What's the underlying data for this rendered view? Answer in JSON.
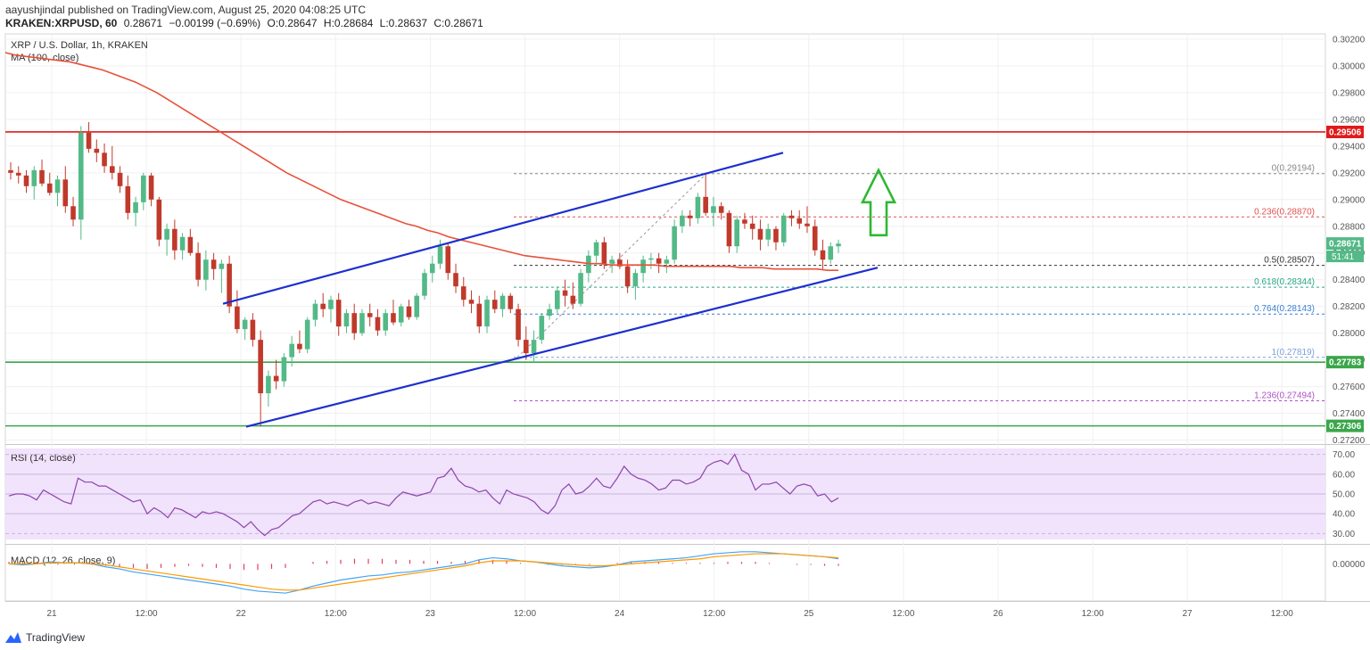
{
  "header": {
    "publisher": "aayushjindal published on TradingView.com, August 25, 2020 04:08:25 UTC",
    "symbol": "KRAKEN:XRPUSD, 60",
    "last": "0.28671",
    "change": "−0.00199 (−0.69%)",
    "open": "O:0.28647",
    "high": "H:0.28684",
    "low": "L:0.28637",
    "close": "C:0.28671"
  },
  "legend": {
    "pair": "XRP / U.S. Dollar, 1h, KRAKEN",
    "ma": "MA (100, close)",
    "rsi": "RSI (14, close)",
    "macd": "MACD (12, 26, close, 9)"
  },
  "footer": {
    "brand": "TradingView"
  },
  "colors": {
    "up": "#53b987",
    "down": "#c0392b",
    "ma": "#e8503a",
    "resistance": "#e01a1a",
    "support": "#3aa64a",
    "channel": "#1c2fcf",
    "arrow": "#2fb833",
    "rsi_bg": "#f0e3fb",
    "macd_line": "#42a5f5",
    "signal_line": "#ff9800"
  },
  "chart_data": {
    "type": "candlestick",
    "interval": "1h",
    "price_axis_ticks": [
      "0.30200",
      "0.30000",
      "0.29800",
      "0.29600",
      "0.29400",
      "0.29200",
      "0.29000",
      "0.28800",
      "0.28600",
      "0.28400",
      "0.28200",
      "0.28000",
      "0.27800",
      "0.27600",
      "0.27400",
      "0.27200"
    ],
    "ylim": [
      0.2717,
      0.3024
    ],
    "time_axis_labels": [
      "21",
      "12:00",
      "22",
      "12:00",
      "23",
      "12:00",
      "24",
      "12:00",
      "25",
      "12:00",
      "26",
      "12:00",
      "27",
      "12:00"
    ],
    "price_labels": {
      "resistance": "0.29506",
      "current": "0.28671",
      "countdown": "51:41",
      "support1": "0.27783",
      "support2": "0.27306"
    },
    "horizontal_levels": [
      {
        "name": "resistance",
        "value": 0.29506
      },
      {
        "name": "support1",
        "value": 0.27783
      },
      {
        "name": "support2",
        "value": 0.27306
      }
    ],
    "fibonacci": [
      {
        "level": "0",
        "value": "0.29194",
        "color": "#888888"
      },
      {
        "level": "0.236",
        "value": "0.28870",
        "color": "#e05050"
      },
      {
        "level": "0.5",
        "value": "0.28507",
        "color": "#333333"
      },
      {
        "level": "0.618",
        "value": "0.28344",
        "color": "#28a789"
      },
      {
        "level": "0.764",
        "value": "0.28143",
        "color": "#3a7fd5"
      },
      {
        "level": "1",
        "value": "0.27819",
        "color": "#7aa0d8"
      },
      {
        "level": "1.236",
        "value": "0.27494",
        "color": "#b050c8"
      }
    ],
    "fib_labels": [
      "0(0.29194)",
      "0.236(0.28870)",
      "0.5(0.28507)",
      "0.618(0.28344)",
      "0.764(0.28143)",
      "1(0.27819)",
      "1.236(0.27494)"
    ],
    "channel": {
      "upper": [
        [
          0,
          0.2822
        ],
        [
          0,
          0.2935
        ]
      ],
      "lower": [
        [
          0,
          0.273
        ],
        [
          0,
          0.2849
        ]
      ]
    },
    "candles_ohlc": [
      [
        0.2922,
        0.2928,
        0.2915,
        0.292
      ],
      [
        0.292,
        0.2925,
        0.2912,
        0.2918
      ],
      [
        0.2918,
        0.2922,
        0.2905,
        0.291
      ],
      [
        0.291,
        0.2925,
        0.29,
        0.2922
      ],
      [
        0.2922,
        0.293,
        0.291,
        0.2912
      ],
      [
        0.2912,
        0.292,
        0.2903,
        0.2905
      ],
      [
        0.2905,
        0.2918,
        0.2895,
        0.2915
      ],
      [
        0.2915,
        0.2925,
        0.289,
        0.2895
      ],
      [
        0.2895,
        0.2902,
        0.288,
        0.2885
      ],
      [
        0.2885,
        0.2955,
        0.287,
        0.295
      ],
      [
        0.295,
        0.2958,
        0.2935,
        0.2938
      ],
      [
        0.2938,
        0.2945,
        0.2928,
        0.2935
      ],
      [
        0.2935,
        0.2942,
        0.292,
        0.2925
      ],
      [
        0.2925,
        0.294,
        0.2915,
        0.292
      ],
      [
        0.292,
        0.2925,
        0.2905,
        0.291
      ],
      [
        0.291,
        0.2918,
        0.2885,
        0.289
      ],
      [
        0.289,
        0.2902,
        0.288,
        0.2898
      ],
      [
        0.2898,
        0.292,
        0.2892,
        0.2918
      ],
      [
        0.2918,
        0.292,
        0.2895,
        0.29
      ],
      [
        0.29,
        0.2902,
        0.2865,
        0.287
      ],
      [
        0.287,
        0.2882,
        0.2858,
        0.2878
      ],
      [
        0.2878,
        0.2885,
        0.2855,
        0.2862
      ],
      [
        0.2862,
        0.2875,
        0.2855,
        0.2872
      ],
      [
        0.2872,
        0.2878,
        0.2858,
        0.286
      ],
      [
        0.286,
        0.2868,
        0.2835,
        0.284
      ],
      [
        0.284,
        0.2862,
        0.2832,
        0.2855
      ],
      [
        0.2855,
        0.286,
        0.284,
        0.2848
      ],
      [
        0.2848,
        0.2855,
        0.283,
        0.2852
      ],
      [
        0.2852,
        0.2858,
        0.2815,
        0.282
      ],
      [
        0.282,
        0.2832,
        0.28,
        0.2803
      ],
      [
        0.2803,
        0.2812,
        0.2795,
        0.281
      ],
      [
        0.281,
        0.2815,
        0.279,
        0.2795
      ],
      [
        0.2795,
        0.2802,
        0.273,
        0.2755
      ],
      [
        0.2755,
        0.2772,
        0.2745,
        0.2768
      ],
      [
        0.2768,
        0.278,
        0.2758,
        0.2764
      ],
      [
        0.2764,
        0.2785,
        0.276,
        0.2782
      ],
      [
        0.2782,
        0.2798,
        0.2775,
        0.2792
      ],
      [
        0.2792,
        0.2802,
        0.2785,
        0.2788
      ],
      [
        0.2788,
        0.2812,
        0.2785,
        0.281
      ],
      [
        0.281,
        0.2825,
        0.2805,
        0.2822
      ],
      [
        0.2822,
        0.283,
        0.2812,
        0.2818
      ],
      [
        0.2818,
        0.2828,
        0.2808,
        0.2825
      ],
      [
        0.2825,
        0.283,
        0.2798,
        0.2805
      ],
      [
        0.2805,
        0.2818,
        0.28,
        0.2815
      ],
      [
        0.2815,
        0.2822,
        0.2795,
        0.28
      ],
      [
        0.28,
        0.2818,
        0.2798,
        0.2815
      ],
      [
        0.2815,
        0.2822,
        0.2805,
        0.2812
      ],
      [
        0.2812,
        0.2818,
        0.2798,
        0.2802
      ],
      [
        0.2802,
        0.2818,
        0.2798,
        0.2815
      ],
      [
        0.2815,
        0.2825,
        0.2806,
        0.2808
      ],
      [
        0.2808,
        0.2822,
        0.2805,
        0.282
      ],
      [
        0.282,
        0.2825,
        0.281,
        0.2812
      ],
      [
        0.2812,
        0.283,
        0.281,
        0.2828
      ],
      [
        0.2828,
        0.2848,
        0.2825,
        0.2845
      ],
      [
        0.2845,
        0.2858,
        0.2838,
        0.2852
      ],
      [
        0.2852,
        0.287,
        0.2848,
        0.2865
      ],
      [
        0.2865,
        0.2868,
        0.284,
        0.2845
      ],
      [
        0.2845,
        0.2852,
        0.283,
        0.2835
      ],
      [
        0.2835,
        0.2842,
        0.282,
        0.2825
      ],
      [
        0.2825,
        0.2832,
        0.2815,
        0.2822
      ],
      [
        0.2822,
        0.2828,
        0.28,
        0.2805
      ],
      [
        0.2805,
        0.2828,
        0.28,
        0.2825
      ],
      [
        0.2825,
        0.2832,
        0.2815,
        0.2818
      ],
      [
        0.2818,
        0.283,
        0.2812,
        0.2828
      ],
      [
        0.2828,
        0.283,
        0.2815,
        0.2818
      ],
      [
        0.2818,
        0.2822,
        0.279,
        0.2795
      ],
      [
        0.2795,
        0.2805,
        0.278,
        0.2785
      ],
      [
        0.2785,
        0.2802,
        0.2778,
        0.2795
      ],
      [
        0.2795,
        0.2815,
        0.2792,
        0.2813
      ],
      [
        0.2813,
        0.2822,
        0.281,
        0.2818
      ],
      [
        0.2818,
        0.2835,
        0.2815,
        0.2832
      ],
      [
        0.2832,
        0.284,
        0.282,
        0.2828
      ],
      [
        0.2828,
        0.2838,
        0.2818,
        0.2822
      ],
      [
        0.2822,
        0.2848,
        0.282,
        0.2845
      ],
      [
        0.2845,
        0.2862,
        0.2838,
        0.2858
      ],
      [
        0.2858,
        0.287,
        0.2852,
        0.2868
      ],
      [
        0.2868,
        0.2872,
        0.2848,
        0.2852
      ],
      [
        0.2852,
        0.2858,
        0.2845,
        0.2855
      ],
      [
        0.2855,
        0.286,
        0.2848,
        0.285
      ],
      [
        0.285,
        0.2855,
        0.283,
        0.2835
      ],
      [
        0.2835,
        0.2848,
        0.2825,
        0.2845
      ],
      [
        0.2845,
        0.2858,
        0.2838,
        0.2855
      ],
      [
        0.2855,
        0.286,
        0.2848,
        0.2856
      ],
      [
        0.2856,
        0.286,
        0.2845,
        0.2852
      ],
      [
        0.2852,
        0.2858,
        0.2845,
        0.2855
      ],
      [
        0.2855,
        0.2885,
        0.2852,
        0.288
      ],
      [
        0.288,
        0.2892,
        0.2875,
        0.2888
      ],
      [
        0.2888,
        0.2892,
        0.288,
        0.2886
      ],
      [
        0.2886,
        0.2905,
        0.2882,
        0.2902
      ],
      [
        0.2902,
        0.2919,
        0.2888,
        0.289
      ],
      [
        0.289,
        0.2902,
        0.288,
        0.2895
      ],
      [
        0.2895,
        0.2898,
        0.2885,
        0.289
      ],
      [
        0.289,
        0.2892,
        0.286,
        0.2865
      ],
      [
        0.2865,
        0.2888,
        0.286,
        0.2885
      ],
      [
        0.2885,
        0.289,
        0.2878,
        0.2882
      ],
      [
        0.2882,
        0.2888,
        0.287,
        0.2878
      ],
      [
        0.2878,
        0.2885,
        0.2862,
        0.287
      ],
      [
        0.287,
        0.2882,
        0.2865,
        0.2878
      ],
      [
        0.2878,
        0.288,
        0.2862,
        0.2868
      ],
      [
        0.2868,
        0.289,
        0.2865,
        0.2888
      ],
      [
        0.2888,
        0.2892,
        0.288,
        0.2886
      ],
      [
        0.2886,
        0.2892,
        0.2878,
        0.2882
      ],
      [
        0.2882,
        0.2895,
        0.2875,
        0.288
      ],
      [
        0.288,
        0.2885,
        0.2858,
        0.2862
      ],
      [
        0.2862,
        0.287,
        0.2848,
        0.2855
      ],
      [
        0.2855,
        0.2868,
        0.2852,
        0.2865
      ],
      [
        0.2865,
        0.287,
        0.286,
        0.2867
      ]
    ],
    "ma100": [
      0.301,
      0.3008,
      0.3007,
      0.3006,
      0.3005,
      0.3004,
      0.3003,
      0.3001,
      0.2999,
      0.2997,
      0.2994,
      0.2991,
      0.2988,
      0.2984,
      0.298,
      0.2975,
      0.297,
      0.2965,
      0.296,
      0.2955,
      0.295,
      0.2945,
      0.294,
      0.2935,
      0.293,
      0.2925,
      0.292,
      0.2916,
      0.2912,
      0.2908,
      0.2904,
      0.29,
      0.2897,
      0.2894,
      0.2891,
      0.2888,
      0.2885,
      0.2882,
      0.288,
      0.2877,
      0.2875,
      0.2872,
      0.287,
      0.2868,
      0.2866,
      0.2864,
      0.2862,
      0.286,
      0.2858,
      0.2857,
      0.2856,
      0.2855,
      0.2854,
      0.2853,
      0.2852,
      0.2852,
      0.2851,
      0.2851,
      0.2851,
      0.2851,
      0.2851,
      0.285,
      0.285,
      0.285,
      0.285,
      0.285,
      0.285,
      0.285,
      0.2849,
      0.2849,
      0.2849,
      0.2848,
      0.2848,
      0.2848,
      0.2848,
      0.2848,
      0.2847,
      0.2847
    ],
    "rsi": {
      "ticks": [
        "70.00",
        "60.00",
        "50.00",
        "40.00",
        "30.00"
      ],
      "ylim": [
        27,
        73
      ],
      "values": [
        49,
        50,
        50,
        49,
        47,
        52,
        50,
        48,
        46,
        45,
        58,
        56,
        56,
        54,
        54,
        52,
        50,
        48,
        46,
        47,
        40,
        43,
        41,
        38,
        43,
        42,
        40,
        38,
        41,
        40,
        41,
        40,
        38,
        36,
        33,
        36,
        32,
        29,
        32,
        33,
        36,
        39,
        40,
        43,
        46,
        47,
        45,
        46,
        45,
        44,
        46,
        47,
        45,
        46,
        45,
        44,
        48,
        51,
        50,
        49,
        50,
        51,
        58,
        59,
        63,
        57,
        54,
        53,
        51,
        52,
        48,
        45,
        52,
        50,
        49,
        48,
        46,
        42,
        40,
        44,
        52,
        55,
        50,
        51,
        54,
        58,
        54,
        53,
        58,
        64,
        60,
        58,
        57,
        55,
        52,
        53,
        57,
        57,
        55,
        56,
        58,
        64,
        66,
        67,
        65,
        70,
        62,
        60,
        52,
        55,
        55,
        56,
        53,
        50,
        54,
        55,
        54,
        49,
        50,
        46,
        48
      ]
    },
    "macd": {
      "ticks": [
        "0.00000"
      ],
      "ylim": [
        -0.0035,
        0.0018
      ],
      "macd_line": [
        0.0,
        -0.0001,
        0.0,
        0.0002,
        0.0001,
        0.0001,
        0.0,
        -0.0003,
        -0.0005,
        -0.0008,
        -0.001,
        -0.0012,
        -0.0014,
        -0.0016,
        -0.0018,
        -0.002,
        -0.0022,
        -0.0025,
        -0.0027,
        -0.0028,
        -0.0029,
        -0.0026,
        -0.0022,
        -0.0019,
        -0.0016,
        -0.0014,
        -0.0012,
        -0.0011,
        -0.0009,
        -0.0008,
        -0.0006,
        -0.0004,
        -0.0002,
        0.0,
        0.0004,
        0.0006,
        0.0005,
        0.0003,
        0.0002,
        0.0,
        -0.0002,
        -0.0003,
        -0.0004,
        -0.0003,
        -0.0001,
        0.0002,
        0.0003,
        0.0004,
        0.0005,
        0.0006,
        0.0008,
        0.001,
        0.0011,
        0.0012,
        0.0012,
        0.0011,
        0.001,
        0.0009,
        0.0008,
        0.0007,
        0.0005
      ],
      "signal_line": [
        0.0,
        0.0,
        0.0,
        0.0001,
        0.0001,
        0.0001,
        0.0,
        -0.0001,
        -0.0003,
        -0.0005,
        -0.0007,
        -0.0009,
        -0.0011,
        -0.0013,
        -0.0015,
        -0.0017,
        -0.0019,
        -0.0021,
        -0.0023,
        -0.0025,
        -0.0026,
        -0.0026,
        -0.0024,
        -0.0022,
        -0.002,
        -0.0018,
        -0.0016,
        -0.0014,
        -0.0012,
        -0.001,
        -0.0008,
        -0.0006,
        -0.0004,
        -0.0002,
        0.0001,
        0.0003,
        0.0003,
        0.0003,
        0.0002,
        0.0001,
        0.0,
        -0.0001,
        -0.0002,
        -0.0002,
        -0.0001,
        0.0,
        0.0001,
        0.0002,
        0.0003,
        0.0004,
        0.0005,
        0.0007,
        0.0008,
        0.0009,
        0.001,
        0.001,
        0.001,
        0.0009,
        0.0008,
        0.0007,
        0.0006
      ],
      "histogram": [
        0.0002,
        0.0002,
        0.0002,
        0.0001,
        0.0001,
        0.0,
        -0.0001,
        -0.0002,
        -0.0003,
        -0.0004,
        -0.0005,
        -0.0004,
        -0.0003,
        -0.0002,
        -0.0003,
        -0.0004,
        -0.0005,
        -0.0006,
        -0.0006,
        -0.0005,
        -0.0004,
        0.0,
        0.0002,
        0.0003,
        0.0004,
        0.0005,
        0.0005,
        0.0005,
        0.0004,
        0.0004,
        0.0003,
        0.0003,
        0.0002,
        0.0003,
        0.0004,
        0.0004,
        0.0003,
        0.0001,
        0.0,
        -0.0001,
        -0.0001,
        -0.0001,
        -0.0001,
        0.0,
        0.0001,
        0.0002,
        0.0002,
        0.0002,
        0.0001,
        0.0001,
        0.0001,
        0.0001,
        0.0002,
        0.0002,
        0.0002,
        0.0001,
        0.0,
        -0.0001,
        -0.0001,
        -0.0002,
        -0.0002
      ]
    }
  }
}
